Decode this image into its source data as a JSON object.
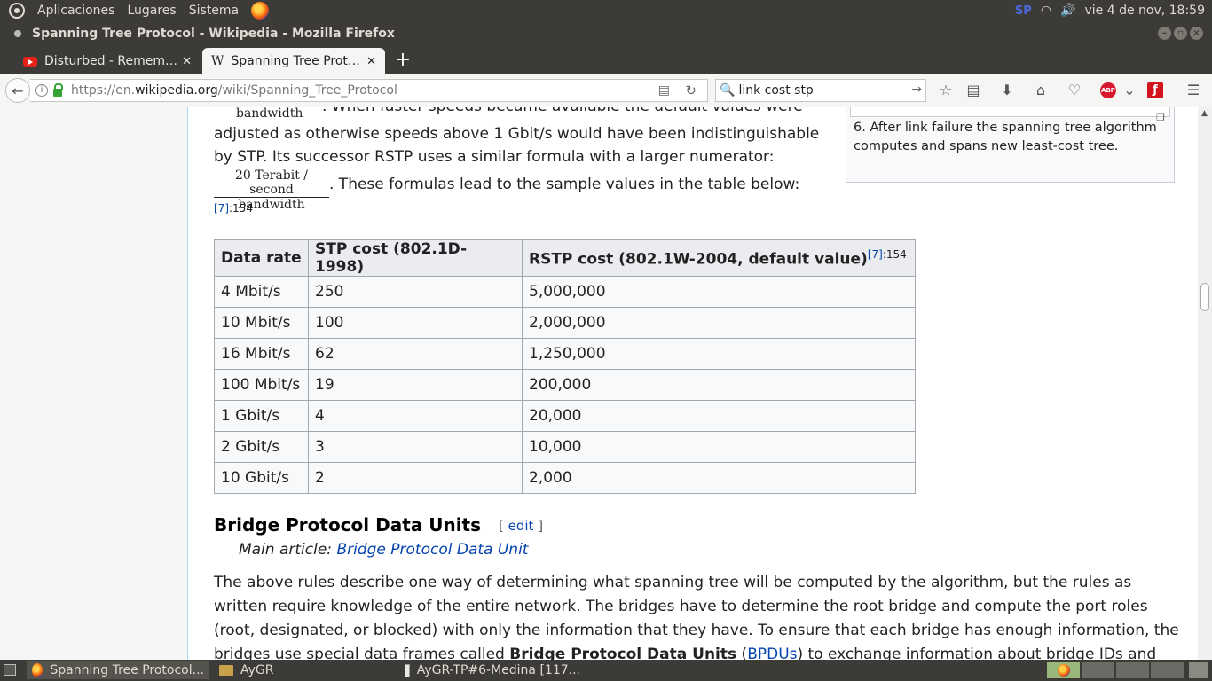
{
  "system_panel": {
    "menu": [
      "Aplicaciones",
      "Lugares",
      "Sistema"
    ],
    "keyboard": "SP",
    "clock": "vie  4 de nov, 18:59"
  },
  "window": {
    "title": "Spanning Tree Protocol - Wikipedia - Mozilla Firefox"
  },
  "tabs": [
    {
      "label": "Disturbed - Remem…",
      "icon": "youtube-icon"
    },
    {
      "label": "Spanning Tree Prot…",
      "icon": "wikipedia-icon",
      "active": true
    }
  ],
  "nav": {
    "url_prefix": "https://en.",
    "url_domain": "wikipedia.org",
    "url_path": "/wiki/Spanning_Tree_Protocol",
    "search_value": "link cost stp"
  },
  "article": {
    "frac1_den": "bandwidth",
    "line1": ". When faster speeds became available the default values were",
    "line2": "adjusted as otherwise speeds above 1 Gbit/s would have been indistinguishable",
    "line3": "by STP. Its successor RSTP uses a similar formula with a larger numerator:",
    "frac2_num": "20 Terabit / second",
    "frac2_den": "bandwidth",
    "line4": ". These formulas lead to the sample values in the table below:",
    "ref1": "[7]",
    "ref1_page": ":154",
    "caption": "6. After link failure the spanning tree algorithm computes and spans new least-cost tree.",
    "table": {
      "headers": [
        "Data rate",
        "STP cost (802.1D-1998)",
        "RSTP cost (802.1W-2004, default value)"
      ],
      "header_ref": "[7]",
      "header_ref_page": ":154",
      "rows": [
        [
          "4 Mbit/s",
          "250",
          "5,000,000"
        ],
        [
          "10 Mbit/s",
          "100",
          "2,000,000"
        ],
        [
          "16 Mbit/s",
          "62",
          "1,250,000"
        ],
        [
          "100 Mbit/s",
          "19",
          "200,000"
        ],
        [
          "1 Gbit/s",
          "4",
          "20,000"
        ],
        [
          "2 Gbit/s",
          "3",
          "10,000"
        ],
        [
          "10 Gbit/s",
          "2",
          "2,000"
        ]
      ]
    },
    "section_heading": "Bridge Protocol Data Units",
    "edit_open": "[ ",
    "edit_label": "edit",
    "edit_close": " ]",
    "main_article_prefix": "Main article: ",
    "main_article_link": "Bridge Protocol Data Unit",
    "para_l1": "The above rules describe one way of determining what spanning tree will be computed by the algorithm, but the rules as",
    "para_l2": "written require knowledge of the entire network. The bridges have to determine the root bridge and compute the port roles",
    "para_l3": "(root, designated, or blocked) with only the information that they have. To ensure that each bridge has enough information, the",
    "para_l4a": "bridges use special data frames called ",
    "para_l4b": "Bridge Protocol Data Units",
    "para_l4c": " (",
    "para_l4d": "BPDUs",
    "para_l4e": ") to exchange information about bridge IDs and"
  },
  "taskbar": [
    {
      "label": "Spanning Tree Protocol...",
      "icon": "firefox-icon",
      "active": true
    },
    {
      "label": "AyGR",
      "icon": "folder-icon"
    },
    {
      "label": "AyGR-TP#6-Medina [117...",
      "icon": "document-icon"
    }
  ]
}
